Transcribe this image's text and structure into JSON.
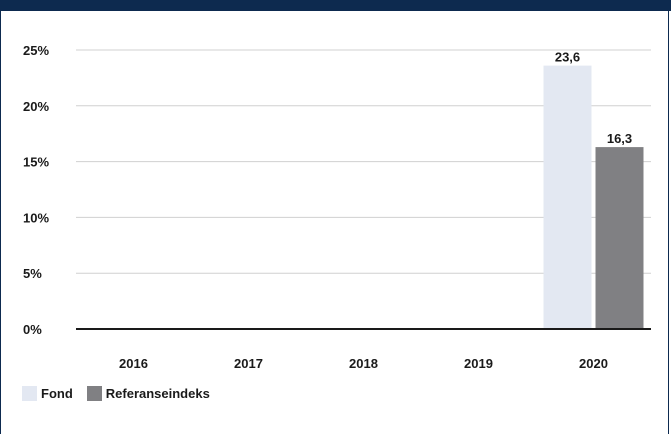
{
  "chart_data": {
    "type": "bar",
    "categories": [
      "2016",
      "2017",
      "2018",
      "2019",
      "2020"
    ],
    "series": [
      {
        "name": "Fond",
        "values": [
          null,
          null,
          null,
          null,
          23.6
        ],
        "labels": [
          "",
          "",
          "",
          "",
          "23,6"
        ],
        "color": "#e3e8f2"
      },
      {
        "name": "Referanseindeks",
        "values": [
          null,
          null,
          null,
          null,
          16.3
        ],
        "labels": [
          "",
          "",
          "",
          "",
          "16,3"
        ],
        "color": "#808083"
      }
    ],
    "yticks": [
      "0%",
      "5%",
      "10%",
      "15%",
      "20%",
      "25%"
    ],
    "ylim": [
      0,
      25
    ],
    "grid": true,
    "legend_position": "bottom-left",
    "colors": {
      "header": "#0d2a4f",
      "grid": "#d0d0d0",
      "axis": "#1a1a1a"
    }
  }
}
